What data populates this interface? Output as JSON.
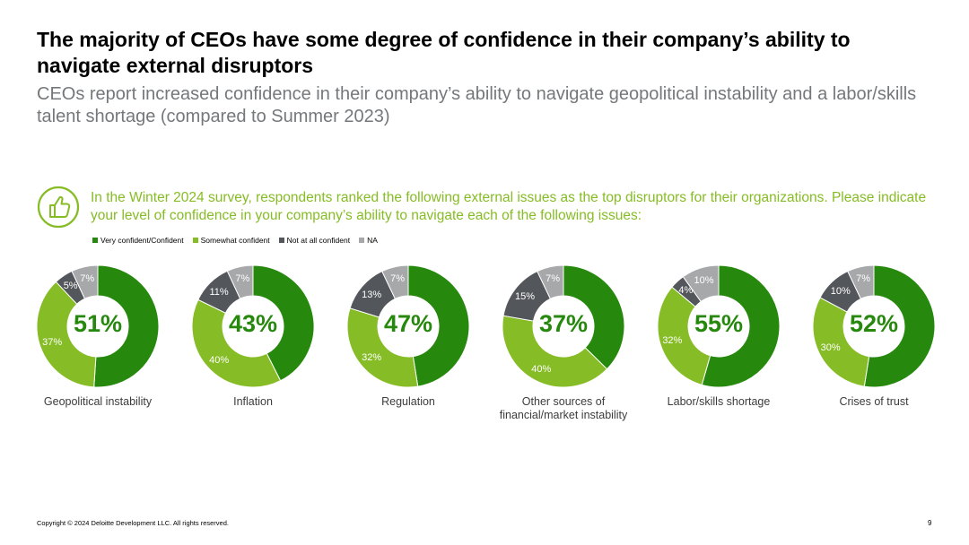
{
  "title": "The majority of CEOs have some degree of confidence in their company’s ability to navigate external disruptors",
  "subtitle": "CEOs report increased confidence in their company’s ability to navigate geopolitical instability and a labor/skills talent shortage (compared to Summer 2023)",
  "question": "In the Winter 2024 survey, respondents ranked the following external issues as the top disruptors for their organizations. Please indicate your level of confidence in your company’s ability to navigate each of the following issues:",
  "icon": "thumbs-up-icon",
  "legend": [
    {
      "label": "Very confident/Confident",
      "color": "#26890d"
    },
    {
      "label": "Somewhat confident",
      "color": "#86bc25"
    },
    {
      "label": "Not at all confident",
      "color": "#53565a"
    },
    {
      "label": "NA",
      "color": "#a7a8aa"
    }
  ],
  "chart_data": [
    {
      "type": "pie",
      "title": "Geopolitical instability",
      "center_label": "51%",
      "categories": [
        "Very confident/Confident",
        "Somewhat confident",
        "Not at all confident",
        "NA"
      ],
      "values": [
        51,
        37,
        5,
        7
      ],
      "labels": [
        "",
        "37%",
        "5%",
        "7%"
      ]
    },
    {
      "type": "pie",
      "title": "Inflation",
      "center_label": "43%",
      "categories": [
        "Very confident/Confident",
        "Somewhat confident",
        "Not at all confident",
        "NA"
      ],
      "values": [
        43,
        40,
        11,
        7
      ],
      "labels": [
        "",
        "40%",
        "11%",
        "7%"
      ]
    },
    {
      "type": "pie",
      "title": "Regulation",
      "center_label": "47%",
      "categories": [
        "Very confident/Confident",
        "Somewhat confident",
        "Not at all confident",
        "NA"
      ],
      "values": [
        47,
        32,
        13,
        7
      ],
      "labels": [
        "",
        "32%",
        "13%",
        "7%"
      ]
    },
    {
      "type": "pie",
      "title": "Other sources of financial/market instability",
      "center_label": "37%",
      "categories": [
        "Very confident/Confident",
        "Somewhat confident",
        "Not at all confident",
        "NA"
      ],
      "values": [
        37,
        40,
        15,
        7
      ],
      "labels": [
        "",
        "40%",
        "15%",
        "7%"
      ]
    },
    {
      "type": "pie",
      "title": "Labor/skills shortage",
      "center_label": "55%",
      "categories": [
        "Very confident/Confident",
        "Somewhat confident",
        "Not at all confident",
        "NA"
      ],
      "values": [
        55,
        32,
        4,
        10
      ],
      "labels": [
        "",
        "32%",
        "4%",
        "10%"
      ]
    },
    {
      "type": "pie",
      "title": "Crises of trust",
      "center_label": "52%",
      "categories": [
        "Very confident/Confident",
        "Somewhat confident",
        "Not at all confident",
        "NA"
      ],
      "values": [
        52,
        30,
        10,
        7
      ],
      "labels": [
        "",
        "30%",
        "10%",
        "7%"
      ]
    }
  ],
  "footer": "Copyright © 2024 Deloitte Development LLC. All rights reserved.",
  "page_number": "9"
}
